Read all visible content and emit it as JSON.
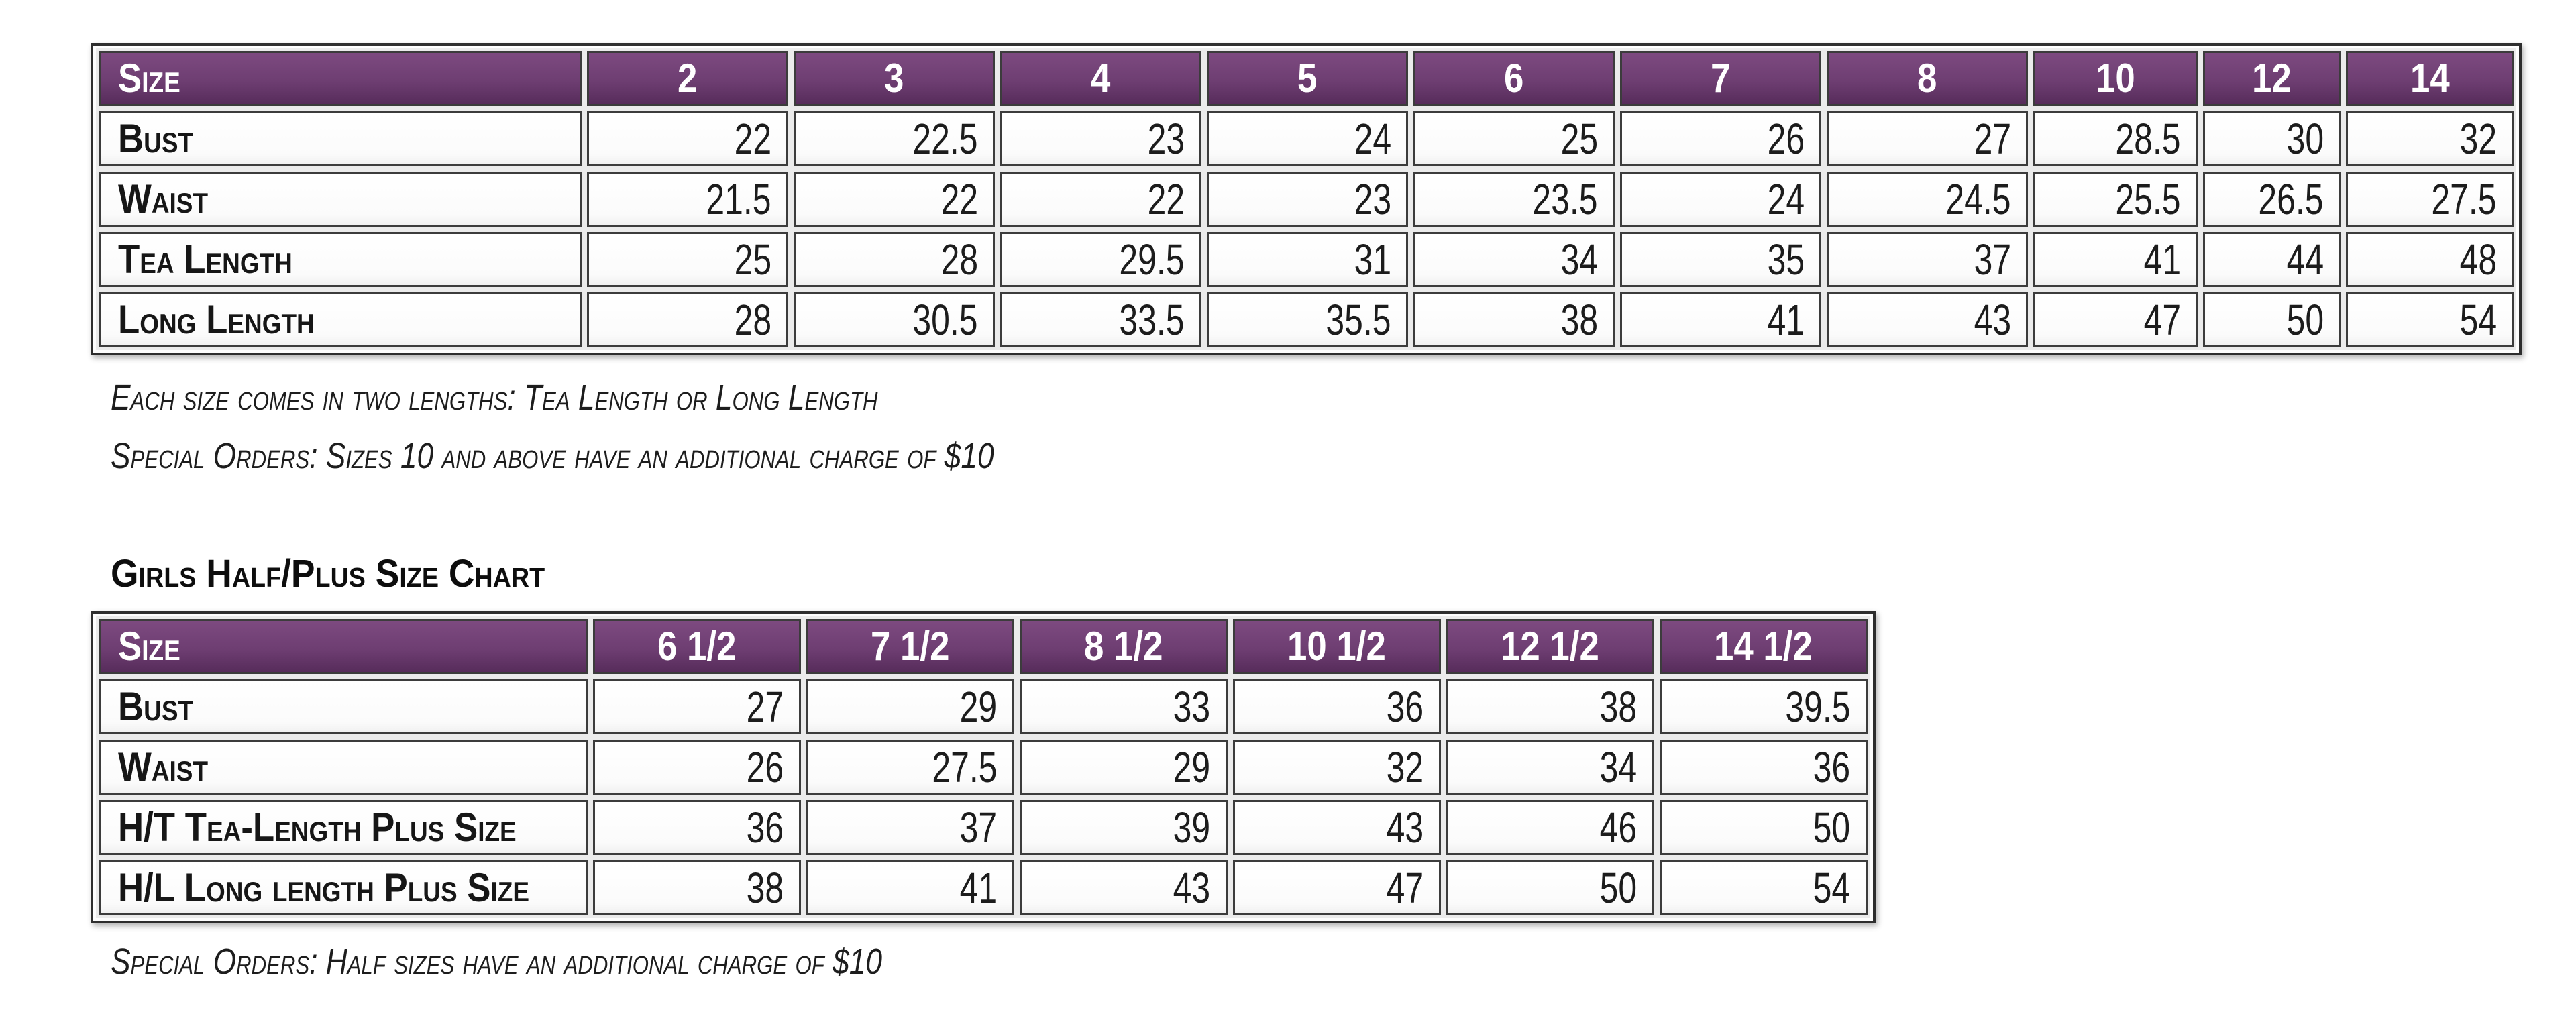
{
  "colors": {
    "header_bg": "#6e3e72",
    "header_bg_light": "#7d4a80",
    "header_bg_dark": "#572c5b",
    "header_text": "#ffffff",
    "cell_text": "#1c1c1c",
    "grid_dark": "#3c3c3c",
    "grid_light": "#ebebeb"
  },
  "girls_size_chart": {
    "header": [
      "Size",
      "2",
      "3",
      "4",
      "5",
      "6",
      "7",
      "8",
      "10",
      "12",
      "14"
    ],
    "rows": [
      {
        "label": "Bust",
        "values": [
          "22",
          "22.5",
          "23",
          "24",
          "25",
          "26",
          "27",
          "28.5",
          "30",
          "32"
        ]
      },
      {
        "label": "Waist",
        "values": [
          "21.5",
          "22",
          "22",
          "23",
          "23.5",
          "24",
          "24.5",
          "25.5",
          "26.5",
          "27.5"
        ]
      },
      {
        "label": "Tea Length",
        "values": [
          "25",
          "28",
          "29.5",
          "31",
          "34",
          "35",
          "37",
          "41",
          "44",
          "48"
        ]
      },
      {
        "label": "Long Length",
        "values": [
          "28",
          "30.5",
          "33.5",
          "35.5",
          "38",
          "41",
          "43",
          "47",
          "50",
          "54"
        ]
      }
    ],
    "notes": [
      "Each size comes in two lengths: Tea Length or Long Length",
      "Special Orders: Sizes 10 and above have an additional charge of $10"
    ]
  },
  "half_plus_size_chart": {
    "title": "Girls Half/Plus Size Chart",
    "header": [
      "Size",
      "6 1/2",
      "7 1/2",
      "8 1/2",
      "10 1/2",
      "12 1/2",
      "14 1/2"
    ],
    "rows": [
      {
        "label": "Bust",
        "values": [
          "27",
          "29",
          "33",
          "36",
          "38",
          "39.5"
        ]
      },
      {
        "label": "Waist",
        "values": [
          "26",
          "27.5",
          "29",
          "32",
          "34",
          "36"
        ]
      },
      {
        "label": "H/T Tea-Length Plus Size",
        "values": [
          "36",
          "37",
          "39",
          "43",
          "46",
          "50"
        ]
      },
      {
        "label": "H/L Long length Plus Size",
        "values": [
          "38",
          "41",
          "43",
          "47",
          "50",
          "54"
        ]
      }
    ],
    "notes": [
      "Special Orders: Half sizes have an additional charge of $10"
    ]
  }
}
